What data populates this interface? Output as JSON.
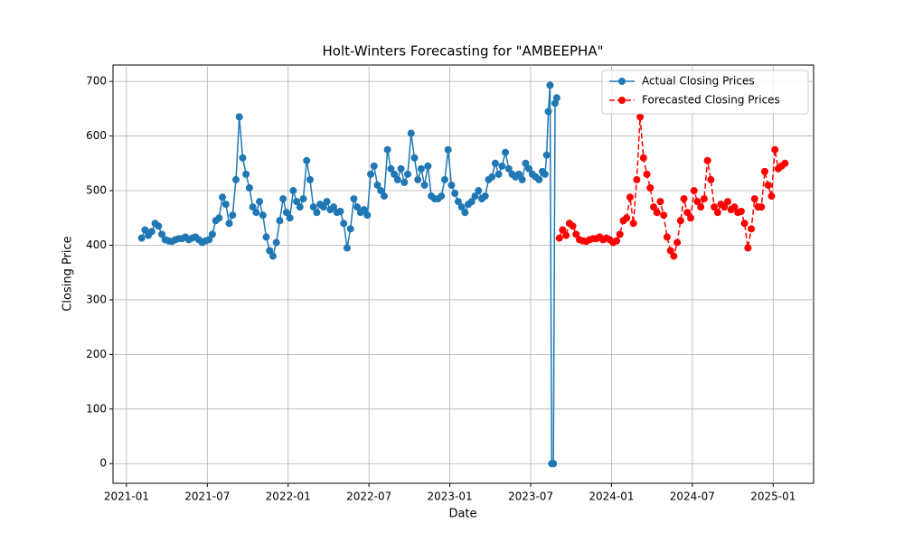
{
  "chart_data": {
    "type": "line",
    "title": "Holt-Winters Forecasting for \"AMBEEPHA\"",
    "x_label": "Date",
    "y_label": "Closing Price",
    "xlim": [
      "2020-12",
      "2025-04"
    ],
    "xticks": [
      "2021-01",
      "2021-07",
      "2022-01",
      "2022-07",
      "2023-01",
      "2023-07",
      "2024-01",
      "2024-07",
      "2025-01"
    ],
    "ylim": [
      -36,
      730
    ],
    "yticks": [
      0,
      100,
      200,
      300,
      400,
      500,
      600,
      700
    ],
    "grid": true,
    "legend": "upper right",
    "series": [
      {
        "name": "Actual Closing Prices",
        "color": "#1f77b4",
        "linestyle": "solid",
        "x": [
          "2021-02",
          "2021-02",
          "2021-02",
          "2021-02",
          "2021-03",
          "2021-03",
          "2021-03",
          "2021-03",
          "2021-04",
          "2021-04",
          "2021-04",
          "2021-04",
          "2021-05",
          "2021-05",
          "2021-05",
          "2021-05",
          "2021-06",
          "2021-06",
          "2021-06",
          "2021-06",
          "2021-07",
          "2021-07",
          "2021-07",
          "2021-07",
          "2021-08",
          "2021-08",
          "2021-08",
          "2021-08",
          "2021-09",
          "2021-09",
          "2021-09",
          "2021-09",
          "2021-10",
          "2021-10",
          "2021-10",
          "2021-10",
          "2021-11",
          "2021-11",
          "2021-11",
          "2021-11",
          "2021-12",
          "2021-12",
          "2021-12",
          "2021-12",
          "2022-01",
          "2022-01",
          "2022-01",
          "2022-01",
          "2022-02",
          "2022-02",
          "2022-02",
          "2022-02",
          "2022-03",
          "2022-03",
          "2022-03",
          "2022-03",
          "2022-04",
          "2022-04",
          "2022-04",
          "2022-04",
          "2022-05",
          "2022-05",
          "2022-05",
          "2022-05",
          "2022-06",
          "2022-06",
          "2022-06",
          "2022-06",
          "2022-07",
          "2022-07",
          "2022-07",
          "2022-07",
          "2022-08",
          "2022-08",
          "2022-08",
          "2022-08",
          "2022-09",
          "2022-09",
          "2022-09",
          "2022-09",
          "2022-10",
          "2022-10",
          "2022-10",
          "2022-10",
          "2022-11",
          "2022-11",
          "2022-11",
          "2022-11",
          "2022-12",
          "2022-12",
          "2022-12",
          "2022-12",
          "2023-01",
          "2023-01",
          "2023-01",
          "2023-01",
          "2023-02",
          "2023-02",
          "2023-02",
          "2023-02",
          "2023-03",
          "2023-03",
          "2023-03",
          "2023-03",
          "2023-04",
          "2023-04",
          "2023-04",
          "2023-04",
          "2023-05",
          "2023-05",
          "2023-05",
          "2023-05",
          "2023-06",
          "2023-06",
          "2023-06",
          "2023-06",
          "2023-07",
          "2023-07",
          "2023-07",
          "2023-07",
          "2023-08",
          "2023-08",
          "2023-08",
          "2023-08",
          "2023-08",
          "2023-08",
          "2023-08",
          "2023-08"
        ],
        "values": [
          413,
          428,
          418,
          425,
          440,
          435,
          420,
          410,
          408,
          407,
          410,
          412,
          412,
          415,
          410,
          413,
          415,
          410,
          405,
          408,
          410,
          420,
          445,
          450,
          488,
          475,
          440,
          455,
          520,
          635,
          560,
          530,
          505,
          470,
          460,
          480,
          455,
          415,
          390,
          380,
          405,
          445,
          485,
          460,
          450,
          500,
          480,
          470,
          485,
          555,
          520,
          470,
          460,
          475,
          470,
          480,
          465,
          470,
          460,
          462,
          440,
          395,
          430,
          485,
          470,
          460,
          465,
          455,
          530,
          545,
          510,
          500,
          490,
          575,
          540,
          530,
          520,
          540,
          515,
          530,
          605,
          560,
          520,
          540,
          510,
          545,
          490,
          485,
          485,
          490,
          520,
          575,
          510,
          495,
          480,
          470,
          460,
          475,
          480,
          490,
          500,
          485,
          490,
          520,
          525,
          550,
          530,
          545,
          570,
          540,
          530,
          525,
          530,
          520,
          550,
          540,
          530,
          525,
          520,
          535,
          530,
          565,
          645,
          693,
          0,
          0,
          660,
          670
        ]
      },
      {
        "name": "Forecasted Closing Prices",
        "color": "#ff0000",
        "linestyle": "dashed",
        "x": [
          "2023-09",
          "2023-09",
          "2023-09",
          "2023-09",
          "2023-10",
          "2023-10",
          "2023-10",
          "2023-10",
          "2023-11",
          "2023-11",
          "2023-11",
          "2023-11",
          "2023-12",
          "2023-12",
          "2023-12",
          "2023-12",
          "2024-01",
          "2024-01",
          "2024-01",
          "2024-01",
          "2024-02",
          "2024-02",
          "2024-02",
          "2024-02",
          "2024-03",
          "2024-03",
          "2024-03",
          "2024-03",
          "2024-04",
          "2024-04",
          "2024-04",
          "2024-04",
          "2024-05",
          "2024-05",
          "2024-05",
          "2024-05",
          "2024-06",
          "2024-06",
          "2024-06",
          "2024-06",
          "2024-07",
          "2024-07",
          "2024-07",
          "2024-07",
          "2024-08",
          "2024-08",
          "2024-08",
          "2024-08",
          "2024-09",
          "2024-09",
          "2024-09",
          "2024-09",
          "2024-10",
          "2024-10",
          "2024-10",
          "2024-10",
          "2024-11",
          "2024-11",
          "2024-11",
          "2024-11",
          "2024-12",
          "2024-12",
          "2024-12",
          "2024-12",
          "2025-01",
          "2025-01",
          "2025-01",
          "2025-01"
        ],
        "values": [
          413,
          428,
          418,
          440,
          435,
          420,
          410,
          408,
          407,
          410,
          412,
          412,
          415,
          410,
          413,
          410,
          405,
          408,
          420,
          445,
          450,
          488,
          440,
          520,
          635,
          560,
          530,
          505,
          470,
          460,
          480,
          455,
          415,
          390,
          380,
          405,
          445,
          485,
          460,
          450,
          500,
          480,
          470,
          485,
          555,
          520,
          470,
          460,
          475,
          470,
          480,
          465,
          470,
          460,
          462,
          440,
          395,
          430,
          485,
          470,
          470,
          535,
          510,
          490,
          575,
          540,
          545,
          550
        ]
      }
    ]
  }
}
